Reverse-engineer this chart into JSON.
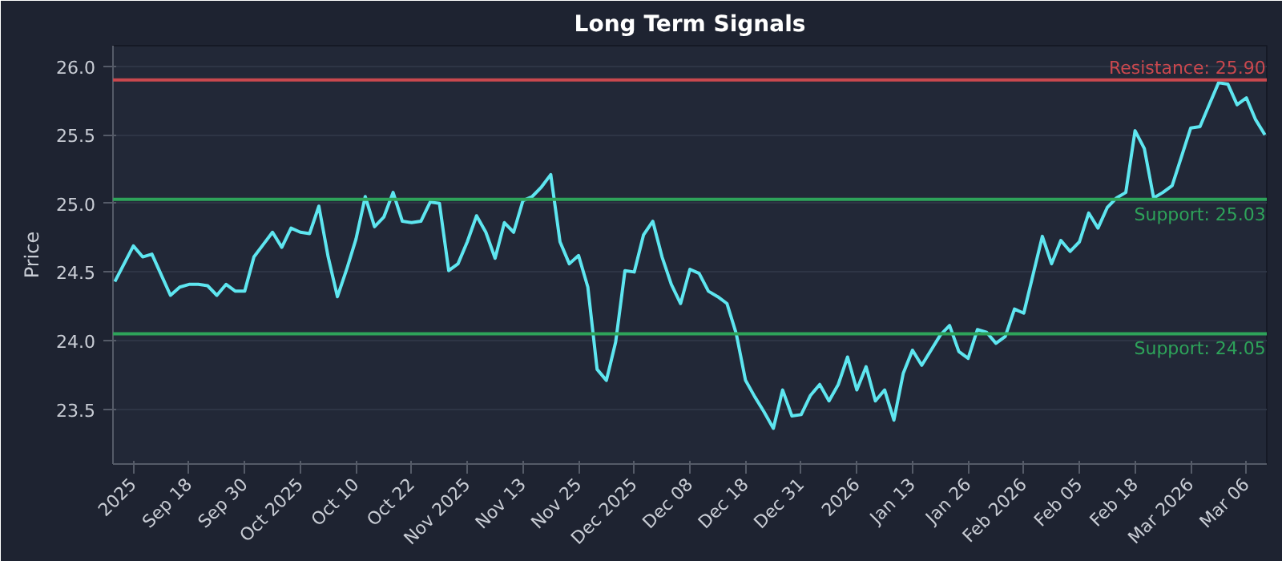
{
  "chart_data": {
    "type": "line",
    "title": "Long Term Signals",
    "ylabel": "Price",
    "categories": [
      null,
      null,
      "2025",
      null,
      null,
      null,
      null,
      null,
      "Sep 18",
      null,
      null,
      null,
      null,
      null,
      "Sep 30",
      null,
      null,
      null,
      null,
      null,
      "Oct 2025",
      null,
      null,
      null,
      null,
      null,
      "Oct 10",
      null,
      null,
      null,
      null,
      null,
      "Oct 22",
      null,
      null,
      null,
      null,
      null,
      "Nov 2025",
      null,
      null,
      null,
      null,
      null,
      "Nov 13",
      null,
      null,
      null,
      null,
      null,
      "Nov 25",
      null,
      null,
      null,
      null,
      null,
      "Dec 2025",
      null,
      null,
      null,
      null,
      null,
      "Dec 08",
      null,
      null,
      null,
      null,
      null,
      "Dec 18",
      null,
      null,
      null,
      null,
      null,
      "Dec 31",
      null,
      null,
      null,
      null,
      null,
      "2026",
      null,
      null,
      null,
      null,
      null,
      "Jan 13",
      null,
      null,
      null,
      null,
      null,
      "Jan 26",
      null,
      null,
      null,
      null,
      null,
      "Feb 2026",
      null,
      null,
      null,
      null,
      null,
      "Feb 05",
      null,
      null,
      null,
      null,
      null,
      "Feb 18",
      null,
      null,
      null,
      null,
      null,
      "Mar 2026",
      null,
      null,
      null,
      null,
      null,
      "Mar 06",
      null,
      null
    ],
    "series": [
      {
        "color": "#5ee6f0",
        "values": [
          24.43,
          24.56,
          24.69,
          24.61,
          24.63,
          24.48,
          24.33,
          24.39,
          24.41,
          24.41,
          24.4,
          24.33,
          24.41,
          24.36,
          24.36,
          24.61,
          24.7,
          24.79,
          24.68,
          24.82,
          24.79,
          24.78,
          24.98,
          24.61,
          24.32,
          24.52,
          24.74,
          25.05,
          24.83,
          24.9,
          25.08,
          24.87,
          24.86,
          24.87,
          25.01,
          25.0,
          24.51,
          24.56,
          24.72,
          24.91,
          24.79,
          24.6,
          24.86,
          24.79,
          25.02,
          25.05,
          25.12,
          25.21,
          24.72,
          24.56,
          24.62,
          24.39,
          23.79,
          23.71,
          23.99,
          24.51,
          24.5,
          24.77,
          24.87,
          24.61,
          24.41,
          24.27,
          24.52,
          24.49,
          24.36,
          24.32,
          24.27,
          24.05,
          23.71,
          23.59,
          23.48,
          23.36,
          23.64,
          23.45,
          23.46,
          23.6,
          23.68,
          23.56,
          23.68,
          23.88,
          23.64,
          23.81,
          23.56,
          23.64,
          23.42,
          23.76,
          23.93,
          23.82,
          23.93,
          24.04,
          24.11,
          23.92,
          23.87,
          24.08,
          24.06,
          23.98,
          24.03,
          24.23,
          24.2,
          24.48,
          24.76,
          24.56,
          24.73,
          24.65,
          24.72,
          24.93,
          24.82,
          24.97,
          25.04,
          25.08,
          25.53,
          25.4,
          25.04,
          25.08,
          25.13,
          25.34,
          25.55,
          25.56,
          25.72,
          25.88,
          25.87,
          25.72,
          25.77,
          25.61,
          25.5
        ]
      }
    ],
    "ylim": [
      23.1,
      26.15
    ],
    "yticks": [
      {
        "value": 23.5,
        "label": "23.5"
      },
      {
        "value": 24,
        "label": "24.0"
      },
      {
        "value": 24.5,
        "label": "24.5"
      },
      {
        "value": 25,
        "label": "25.0"
      },
      {
        "value": 25.5,
        "label": "25.5"
      },
      {
        "value": 26,
        "label": "26.0"
      }
    ],
    "ref_lines": [
      {
        "axis": "y",
        "value": 25.9,
        "label": "Resistance: 25.90",
        "color": "#c9484e"
      },
      {
        "axis": "y",
        "value": 25.03,
        "label": "Support: 25.03",
        "color": "#2ea35a"
      },
      {
        "axis": "y",
        "value": 24.05,
        "label": "Support: 24.05",
        "color": "#2ea35a"
      }
    ],
    "grid": "y",
    "marker": "none",
    "line_style": "solid"
  }
}
